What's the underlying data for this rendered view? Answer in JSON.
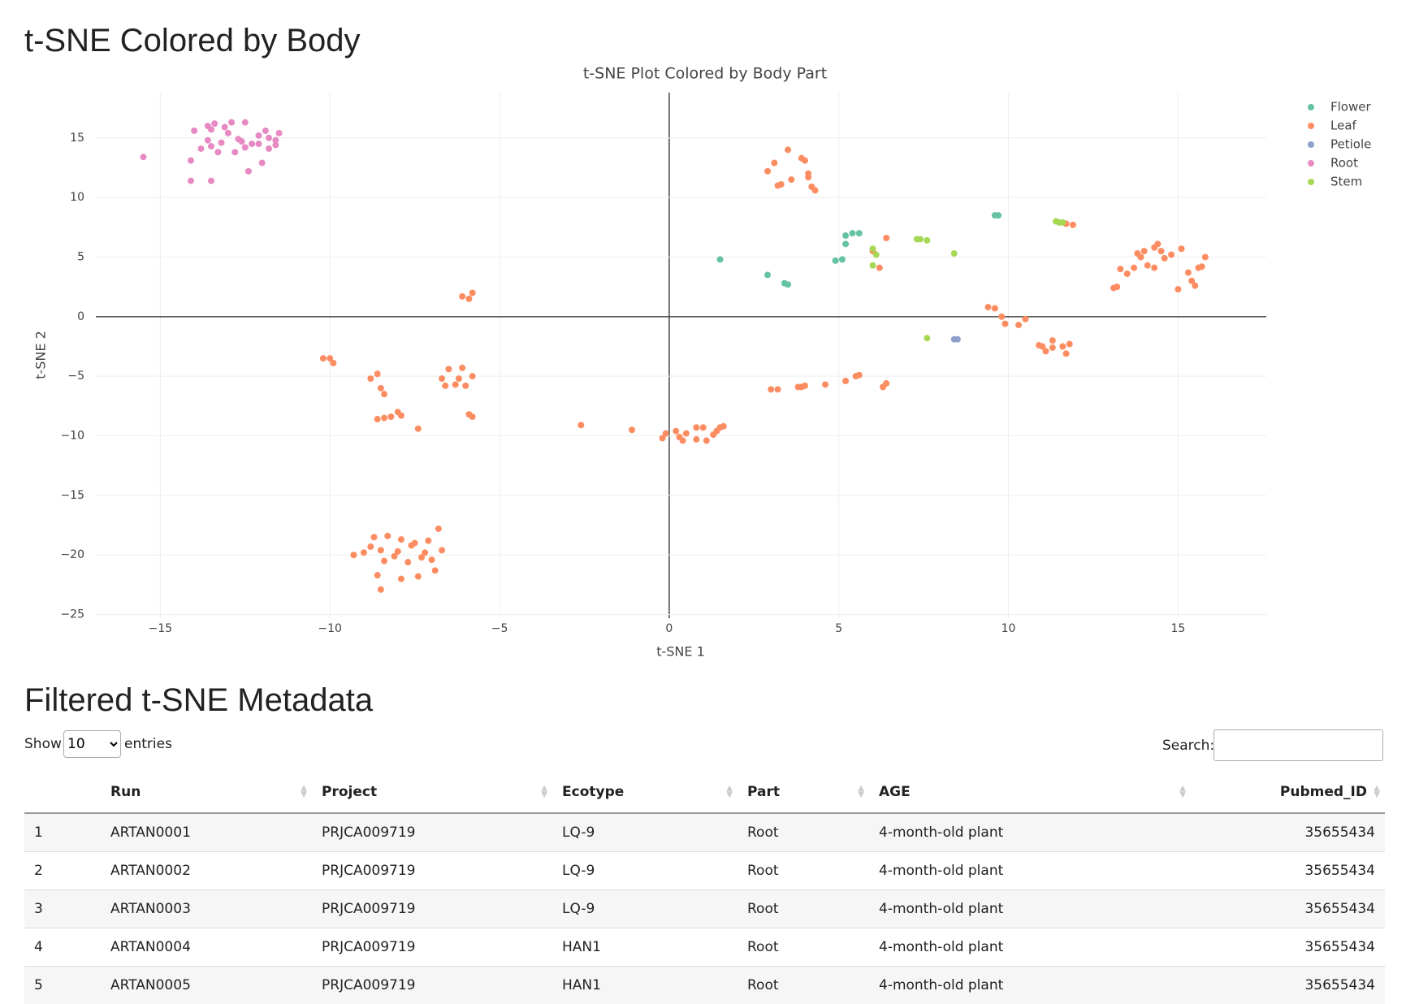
{
  "header": {
    "title": "t-SNE Colored by Body"
  },
  "chart_data": {
    "type": "scatter",
    "title": "t-SNE Plot Colored by Body Part",
    "x_label": "t-SNE 1",
    "y_label": "t-SNE 2",
    "xlim": [
      -16.9,
      17.6
    ],
    "ylim": [
      -25.3,
      18.8
    ],
    "xticks": [
      {
        "value": -15,
        "label": "−15"
      },
      {
        "value": -10,
        "label": "−10"
      },
      {
        "value": -5,
        "label": "−5"
      },
      0,
      5,
      10,
      15
    ],
    "yticks": [
      {
        "value": -25,
        "label": "−25"
      },
      {
        "value": -20,
        "label": "−20"
      },
      {
        "value": -15,
        "label": "−15"
      },
      {
        "value": -10,
        "label": "−10"
      },
      {
        "value": -5,
        "label": "−5"
      },
      0,
      5,
      10,
      15
    ],
    "grid": true,
    "legend": "top-right",
    "series": [
      {
        "name": "Flower",
        "color": "#66c2a5",
        "x": [
          1.5,
          2.9,
          3.4,
          3.5,
          4.9,
          5.1,
          5.2,
          5.2,
          5.4,
          5.6,
          9.6,
          9.7
        ],
        "values": [
          4.8,
          3.5,
          2.8,
          2.7,
          4.7,
          4.8,
          6.1,
          6.8,
          7,
          7,
          8.5,
          8.5
        ]
      },
      {
        "name": "Leaf",
        "color": "#fc8d62",
        "x": [
          2.9,
          3.1,
          3.2,
          3.3,
          3.5,
          3.6,
          3.9,
          4,
          4.1,
          4.1,
          4.2,
          4.3,
          6.0,
          6.2,
          6.4,
          11.7,
          11.9,
          13.1,
          13.2,
          13.3,
          13.5,
          13.7,
          13.8,
          13.9,
          14,
          14.1,
          14.3,
          14.3,
          14.4,
          14.5,
          14.6,
          14.8,
          15,
          15.1,
          15.3,
          15.4,
          15.5,
          15.6,
          15.7,
          15.8,
          9.4,
          9.6,
          9.8,
          9.9,
          10.3,
          10.5,
          10.9,
          11,
          11.1,
          11.3,
          11.3,
          11.6,
          11.7,
          11.8,
          3,
          3.2,
          3.8,
          3.9,
          4,
          4.6,
          5.2,
          5.5,
          5.6,
          6.3,
          6.4,
          -2.6,
          -1.1,
          -0.2,
          -0.1,
          0.2,
          0.3,
          0.4,
          0.5,
          0.8,
          0.8,
          1,
          1.1,
          1.3,
          1.4,
          1.5,
          1.6,
          -10.2,
          -10,
          -9.9,
          -8.8,
          -8.6,
          -8.5,
          -8.4,
          -8.6,
          -8.4,
          -8.2,
          -8,
          -7.9,
          -7.4,
          -6.7,
          -6.6,
          -6.5,
          -6.3,
          -6.2,
          -6.1,
          -6,
          -5.8,
          -5.9,
          -5.8,
          -6.1,
          -5.9,
          -5.8,
          -9.3,
          -9,
          -8.8,
          -8.7,
          -8.6,
          -8.5,
          -8.5,
          -8.4,
          -8.3,
          -8.1,
          -8,
          -7.9,
          -7.9,
          -7.7,
          -7.6,
          -7.5,
          -7.4,
          -7.3,
          -7.2,
          -7.1,
          -7,
          -6.9,
          -6.8,
          -6.7
        ],
        "values": [
          12.2,
          12.9,
          11,
          11.1,
          14,
          11.5,
          13.3,
          13.1,
          12,
          11.7,
          10.9,
          10.6,
          5.5,
          4.1,
          6.6,
          7.8,
          7.7,
          2.4,
          2.5,
          4,
          3.6,
          4.1,
          5.3,
          5,
          5.5,
          4.3,
          4.1,
          5.8,
          6.1,
          5.5,
          4.9,
          5.2,
          2.3,
          5.7,
          3.7,
          3,
          2.6,
          4.1,
          4.2,
          5,
          0.8,
          0.7,
          0,
          -0.6,
          -0.7,
          -0.2,
          -2.4,
          -2.5,
          -2.9,
          -2,
          -2.6,
          -2.5,
          -3.1,
          -2.3,
          -6.1,
          -6.1,
          -5.9,
          -5.9,
          -5.8,
          -5.7,
          -5.4,
          -5,
          -4.9,
          -5.9,
          -5.6,
          -9.1,
          -9.5,
          -10.2,
          -9.8,
          -9.6,
          -10.1,
          -10.4,
          -9.8,
          -10.3,
          -9.3,
          -9.3,
          -10.4,
          -9.9,
          -9.6,
          -9.3,
          -9.2,
          -3.5,
          -3.5,
          -3.9,
          -5.2,
          -4.8,
          -6,
          -6.5,
          -8.6,
          -8.5,
          -8.4,
          -8,
          -8.3,
          -9.4,
          -5.2,
          -5.8,
          -4.4,
          -5.7,
          -5.2,
          -4.3,
          -5.8,
          -5,
          -8.2,
          -8.4,
          1.7,
          1.5,
          2,
          -20,
          -19.8,
          -19.3,
          -18.5,
          -21.7,
          -22.9,
          -19.6,
          -20.5,
          -18.4,
          -20.1,
          -19.7,
          -22,
          -18.7,
          -20.6,
          -19.2,
          -19,
          -21.8,
          -20.2,
          -19.8,
          -18.8,
          -20.4,
          -21.3,
          -17.8,
          -19.6
        ]
      },
      {
        "name": "Petiole",
        "color": "#8da0cb",
        "x": [
          8.4,
          8.5
        ],
        "values": [
          -1.9,
          -1.9
        ]
      },
      {
        "name": "Root",
        "color": "#e78ac3",
        "x": [
          -15.5,
          -14.1,
          -14.1,
          -13.5,
          -14,
          -13.6,
          -13.4,
          -13.5,
          -13.1,
          -12.9,
          -12.5,
          -13,
          -12.7,
          -12.6,
          -12.3,
          -12.1,
          -11.9,
          -11.8,
          -11.6,
          -11.5,
          -11.6,
          -11.8,
          -12,
          -12.4,
          -12.5,
          -12.8,
          -13.3,
          -13.5,
          -13.6,
          -13.8,
          -13.2,
          -12.1
        ],
        "values": [
          13.4,
          13.1,
          11.4,
          11.4,
          15.6,
          16,
          16.2,
          15.7,
          15.9,
          16.3,
          16.3,
          15.4,
          14.9,
          14.7,
          14.5,
          15.2,
          15.6,
          15,
          14.8,
          15.4,
          14.4,
          14.1,
          12.9,
          12.2,
          14.2,
          13.8,
          13.8,
          14.3,
          14.8,
          14.1,
          14.6,
          14.5
        ]
      },
      {
        "name": "Stem",
        "color": "#a6d854",
        "x": [
          6,
          6.1,
          6,
          7.3,
          7.4,
          7.6,
          8.4,
          7.6,
          11.4,
          11.5,
          11.6
        ],
        "values": [
          5.7,
          5.2,
          4.3,
          6.5,
          6.5,
          6.4,
          5.3,
          -1.8,
          8,
          7.9,
          7.9
        ]
      }
    ]
  },
  "table": {
    "title": "Filtered t-SNE Metadata",
    "show_label": "Show",
    "page_length": "10",
    "entries_label": "entries",
    "search_label": "Search:",
    "columns": [
      "",
      "Run",
      "Project",
      "Ecotype",
      "Part",
      "AGE",
      "Pubmed_ID"
    ],
    "rows": [
      [
        "1",
        "ARTAN0001",
        "PRJCA009719",
        "LQ-9",
        "Root",
        "4-month-old plant",
        "35655434"
      ],
      [
        "2",
        "ARTAN0002",
        "PRJCA009719",
        "LQ-9",
        "Root",
        "4-month-old plant",
        "35655434"
      ],
      [
        "3",
        "ARTAN0003",
        "PRJCA009719",
        "LQ-9",
        "Root",
        "4-month-old plant",
        "35655434"
      ],
      [
        "4",
        "ARTAN0004",
        "PRJCA009719",
        "HAN1",
        "Root",
        "4-month-old plant",
        "35655434"
      ],
      [
        "5",
        "ARTAN0005",
        "PRJCA009719",
        "HAN1",
        "Root",
        "4-month-old plant",
        "35655434"
      ]
    ]
  }
}
